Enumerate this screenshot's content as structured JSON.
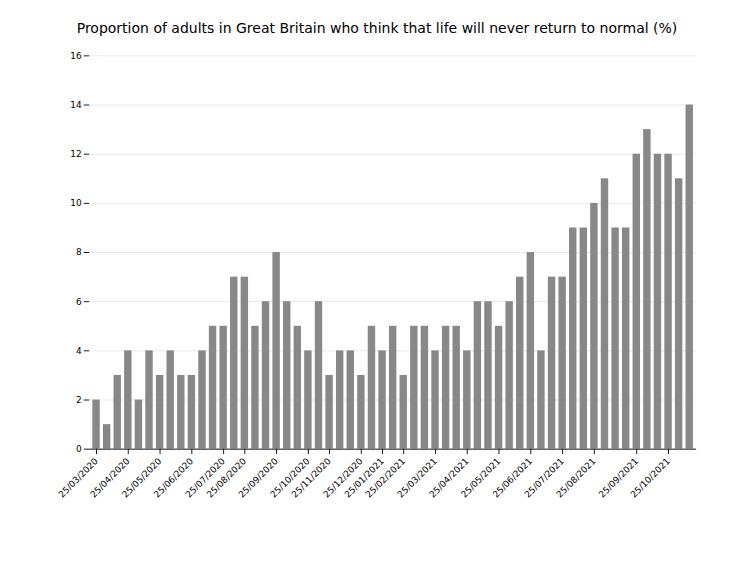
{
  "chart_data": {
    "type": "bar",
    "title": "Proportion of adults in Great Britain who think that life will never return to normal (%)",
    "categories": [
      "25/03/2020",
      null,
      null,
      "25/04/2020",
      null,
      null,
      "25/05/2020",
      null,
      null,
      "25/06/2020",
      null,
      null,
      "25/07/2020",
      null,
      "25/08/2020",
      null,
      null,
      "25/09/2020",
      null,
      null,
      "25/10/2020",
      null,
      "25/11/2020",
      null,
      null,
      "25/12/2020",
      null,
      "25/01/2021",
      null,
      "25/02/2021",
      null,
      null,
      "25/03/2021",
      null,
      null,
      "25/04/2021",
      null,
      null,
      "25/05/2021",
      null,
      null,
      "25/06/2021",
      null,
      null,
      "25/07/2021",
      null,
      null,
      "25/08/2021",
      null,
      null,
      null,
      "25/09/2021",
      null,
      null,
      "25/10/2021",
      null,
      null
    ],
    "values": [
      2,
      1,
      3,
      4,
      2,
      4,
      3,
      4,
      3,
      3,
      4,
      5,
      5,
      7,
      7,
      5,
      6,
      8,
      6,
      5,
      4,
      6,
      3,
      4,
      4,
      3,
      5,
      4,
      5,
      3,
      5,
      5,
      4,
      5,
      5,
      4,
      6,
      6,
      5,
      6,
      7,
      8,
      4,
      7,
      7,
      9,
      9,
      10,
      11,
      9,
      9,
      12,
      13,
      12,
      12,
      11,
      14
    ],
    "color": "#888888",
    "ylim": [
      0,
      16
    ],
    "yticks": [
      0,
      2,
      4,
      6,
      8,
      10,
      12,
      14,
      16
    ],
    "grid": true
  }
}
